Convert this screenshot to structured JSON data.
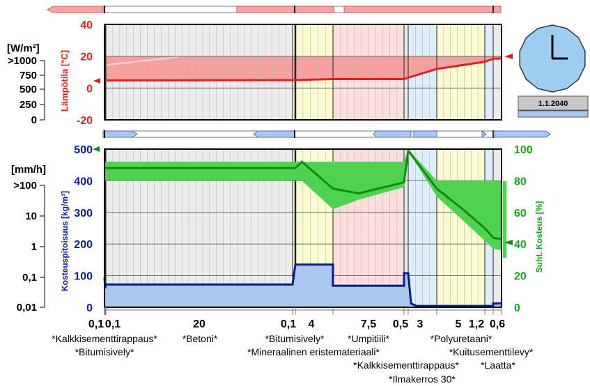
{
  "clock": {
    "date": "1.1.2040"
  },
  "layers": {
    "labels_row1": [
      "*Kalkkisementtirappaus*",
      "*Betoni*",
      "*Bitumisively*",
      "*Umpitiili*",
      "*Polyuretaani*"
    ],
    "labels_row2": [
      "*Bitumisively*",
      "*Mineraalinen eristemateriaali*",
      "*Kuitusementtilevy*"
    ],
    "labels_row3": [
      "*Kalkkisementtirappaus*",
      "*Laatta*"
    ],
    "labels_row4": [
      "*Ilmakerros 30*"
    ],
    "thickness_labels": [
      "0,1",
      "0,1",
      "20",
      "0,1",
      "4",
      "7,5",
      "0,5",
      "3",
      "5",
      "1,2",
      "0,6"
    ]
  },
  "colors": {
    "temperature": "#e02020",
    "temperature_band": "#f7a0a0",
    "humidity": "#138a13",
    "humidity_band": "#4fd24f",
    "moisture": "#0c1a8c",
    "moisture_fill": "#a9c7ef",
    "concrete_bg": "#ececec",
    "bitumen_bg": "#fbfbd2",
    "brick_bg": "#fcdede",
    "insulation_bg": "#ddeef8",
    "clock_face": "#9dcdf0"
  },
  "chart_data": [
    {
      "type": "line",
      "title": "",
      "ylabel": "Lämpötila [°C]",
      "ylim": [
        -20,
        40
      ],
      "yticks": [
        "40",
        "20",
        "0",
        "-20"
      ],
      "left_axis_label": "[W/m²]",
      "left_axis_ticks": [
        ">1000",
        "750",
        "500",
        "250",
        "0"
      ],
      "x_boundaries_mm": [
        0,
        0.1,
        0.2,
        20.2,
        20.3,
        24.3,
        31.8,
        32.3,
        35.3,
        40.3,
        41.5,
        42.1
      ],
      "series": [
        {
          "name": "",
          "x_mm": [
            0,
            20.3,
            24.3,
            31.8,
            32.3,
            35.3,
            40.3,
            41.5,
            42.1
          ],
          "values": [
            4.8,
            5.0,
            5.6,
            5.6,
            6.5,
            12.0,
            16.5,
            18.4,
            18.6
          ]
        }
      ],
      "band_upper_x_mm": [
        0,
        8
      ],
      "band_upper_values": [
        15,
        20
      ],
      "band_lower": 5.0,
      "band_top": 20
    },
    {
      "type": "line",
      "title": "",
      "ylabel": "Kosteuspitoisuus [kg/m³]",
      "ylim": [
        0,
        500
      ],
      "yticks": [
        "500",
        "400",
        "300",
        "200",
        "100",
        "0"
      ],
      "y2label": "Suht. Kosteus [%]",
      "y2lim": [
        0,
        100
      ],
      "y2ticks": [
        "100",
        "80",
        "60",
        "40",
        "20",
        "0"
      ],
      "left_axis_label": "[mm/h]",
      "left_axis_ticks": [
        ">100",
        "10",
        "1",
        "0,1",
        "0,01"
      ],
      "series": [
        {
          "name": "",
          "x_mm": [
            0,
            0.1,
            0.2,
            20.2,
            20.3,
            24.3,
            31.8,
            32.3,
            32.6,
            35.3,
            40.3,
            41.5,
            42.1
          ],
          "values": [
            95,
            60,
            72,
            72,
            135,
            68,
            68,
            108,
            12,
            4,
            4,
            4,
            12
          ]
        },
        {
          "name": "",
          "x_mm": [
            0,
            20.3,
            21,
            24.3,
            27,
            31.8,
            32.3,
            35.3,
            38,
            40.3,
            41.5,
            42.1
          ],
          "values": [
            88,
            88,
            92,
            75,
            72,
            79,
            99,
            75,
            62,
            50,
            44,
            43
          ]
        }
      ],
      "rh_band": {
        "x_mm": [
          0,
          20.3,
          21,
          24.3,
          27,
          31.8,
          32.3,
          35.3,
          38,
          40.3,
          41.5,
          42.1
        ],
        "upper": [
          92,
          92,
          92,
          92,
          92,
          92,
          100,
          80,
          80,
          80,
          80,
          80
        ],
        "lower": [
          80,
          80,
          80,
          62,
          68,
          76,
          99,
          70,
          55,
          42,
          37,
          36
        ]
      }
    }
  ]
}
